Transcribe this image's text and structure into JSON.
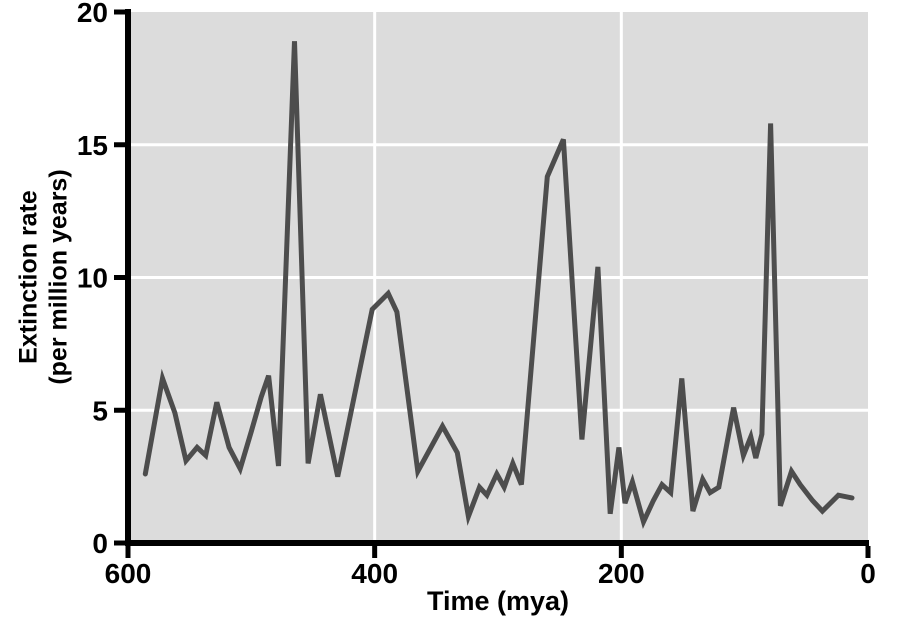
{
  "figure": {
    "background": "#ffffff",
    "plot_background": "#dcdcdc",
    "grid_color": "#ffffff",
    "axis_color": "#000000",
    "line_color": "#4d4d4d"
  },
  "chart_data": {
    "type": "line",
    "title": "",
    "xlabel": "Time (mya)",
    "ylabel": "Extinction rate (per million years)",
    "ylabel_lines": [
      "Extinction rate",
      "(per million years)"
    ],
    "x_axis": {
      "min": 0,
      "max": 600,
      "reversed": true,
      "ticks": [
        600,
        400,
        200,
        0
      ]
    },
    "y_axis": {
      "min": 0,
      "max": 20,
      "ticks": [
        0,
        5,
        10,
        15,
        20
      ]
    },
    "gridlines": {
      "x": [
        400,
        200
      ],
      "y": [
        5,
        10,
        15
      ]
    },
    "legend": "none",
    "series": [
      {
        "name": "extinction-rate",
        "points": [
          [
            586,
            2.6
          ],
          [
            572,
            6.2
          ],
          [
            562,
            4.9
          ],
          [
            553,
            3.1
          ],
          [
            544,
            3.6
          ],
          [
            537,
            3.3
          ],
          [
            528,
            5.3
          ],
          [
            518,
            3.6
          ],
          [
            509,
            2.8
          ],
          [
            500,
            4.2
          ],
          [
            492,
            5.5
          ],
          [
            486,
            6.3
          ],
          [
            478,
            2.9
          ],
          [
            465,
            18.9
          ],
          [
            454,
            3.0
          ],
          [
            444,
            5.6
          ],
          [
            430,
            2.5
          ],
          [
            402,
            8.8
          ],
          [
            389,
            9.4
          ],
          [
            382,
            8.7
          ],
          [
            365,
            2.7
          ],
          [
            345,
            4.4
          ],
          [
            333,
            3.4
          ],
          [
            324,
            1.0
          ],
          [
            315,
            2.1
          ],
          [
            309,
            1.8
          ],
          [
            301,
            2.6
          ],
          [
            295,
            2.1
          ],
          [
            288,
            3.0
          ],
          [
            281,
            2.2
          ],
          [
            260,
            13.8
          ],
          [
            247,
            15.2
          ],
          [
            232,
            3.9
          ],
          [
            219,
            10.4
          ],
          [
            209,
            1.1
          ],
          [
            202,
            3.6
          ],
          [
            197,
            1.5
          ],
          [
            191,
            2.3
          ],
          [
            182,
            0.8
          ],
          [
            174,
            1.6
          ],
          [
            167,
            2.2
          ],
          [
            160,
            1.9
          ],
          [
            151,
            6.2
          ],
          [
            142,
            1.2
          ],
          [
            134,
            2.4
          ],
          [
            128,
            1.9
          ],
          [
            121,
            2.1
          ],
          [
            109,
            5.1
          ],
          [
            101,
            3.3
          ],
          [
            95,
            4.0
          ],
          [
            91,
            3.2
          ],
          [
            86,
            4.1
          ],
          [
            79,
            15.8
          ],
          [
            71,
            1.4
          ],
          [
            62,
            2.7
          ],
          [
            55,
            2.2
          ],
          [
            45,
            1.6
          ],
          [
            37,
            1.2
          ],
          [
            24,
            1.8
          ],
          [
            13,
            1.7
          ]
        ]
      }
    ]
  }
}
